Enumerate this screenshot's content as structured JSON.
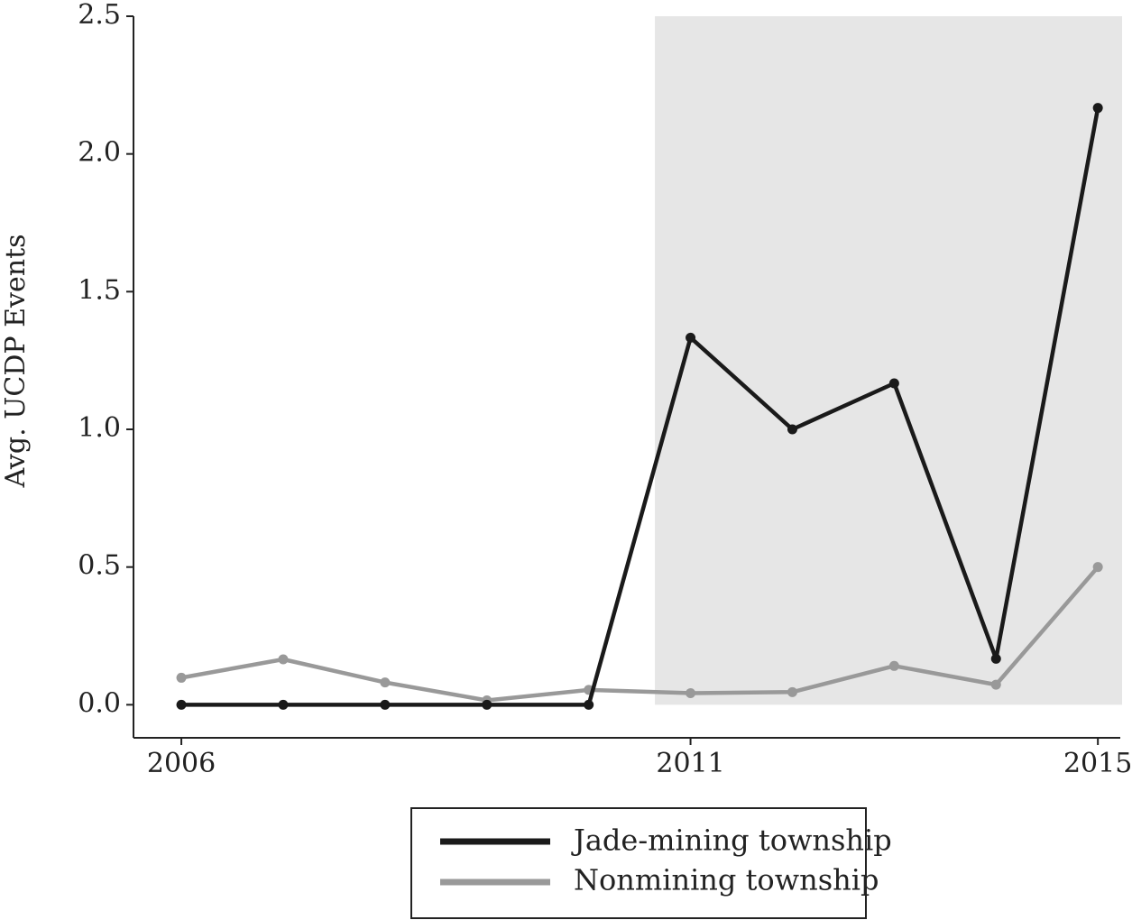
{
  "chart_data": {
    "type": "line",
    "title": "",
    "xlabel": "",
    "ylabel": "Avg. UCDP Events",
    "x": [
      2006,
      2007,
      2008,
      2009,
      2010,
      2011,
      2012,
      2013,
      2014,
      2015
    ],
    "xticks": [
      2006,
      2011,
      2015
    ],
    "xlim": [
      2005.53,
      2015.22
    ],
    "yticks": [
      "0.0",
      "0.5",
      "1.0",
      "1.5",
      "2.0",
      "2.5"
    ],
    "ylim": [
      -0.12,
      2.5
    ],
    "grid": false,
    "shaded_region": {
      "x_start": 2010.65,
      "x_end": 2015.25,
      "color": "#e6e6e6"
    },
    "legend_position": "bottom",
    "series": [
      {
        "name": "Jade-mining township",
        "color": "#1a1a1a",
        "values": [
          0.0,
          0.0,
          0.0,
          0.0,
          0.0,
          1.333,
          1.0,
          1.167,
          0.167,
          2.167
        ]
      },
      {
        "name": "Nonmining township",
        "color": "#999999",
        "values": [
          0.098,
          0.165,
          0.081,
          0.016,
          0.054,
          0.042,
          0.046,
          0.141,
          0.073,
          0.5
        ]
      }
    ]
  }
}
